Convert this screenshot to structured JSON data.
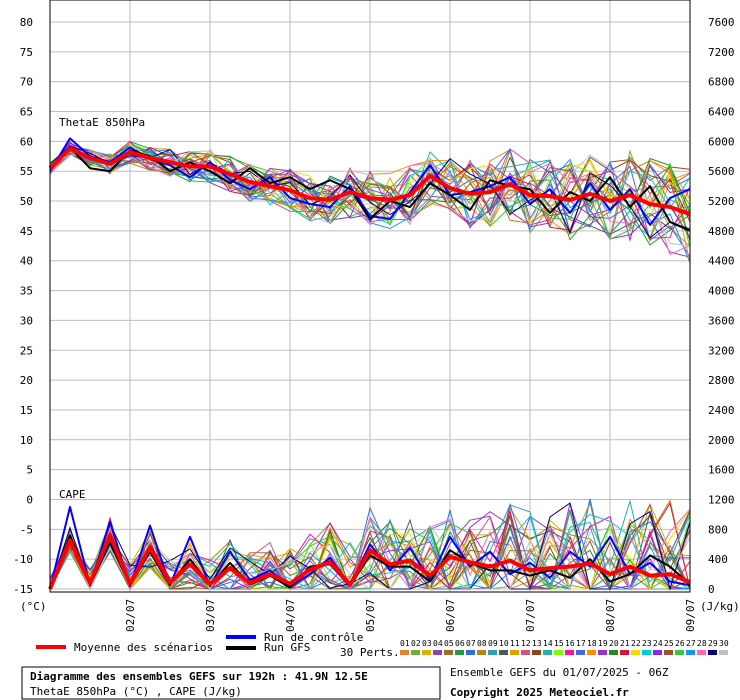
{
  "chart_data": {
    "type": "line",
    "left_axis": {
      "unit_label": "(°C)",
      "ticks": [
        80,
        75,
        70,
        65,
        60,
        55,
        50,
        45,
        40,
        35,
        30,
        25,
        20,
        15,
        10,
        5,
        0,
        -5,
        -10,
        -15
      ],
      "range": [
        -15,
        80
      ]
    },
    "right_axis": {
      "unit_label": "(J/kg)",
      "ticks": [
        7600,
        7200,
        6800,
        6400,
        6000,
        5600,
        5200,
        4800,
        4400,
        4000,
        3600,
        3200,
        2800,
        2400,
        2000,
        1600,
        1200,
        800,
        400,
        0
      ],
      "range": [
        0,
        7600
      ]
    },
    "x_labels": [
      "02/07",
      "03/07",
      "04/07",
      "05/07",
      "06/07",
      "07/07",
      "08/07",
      "09/07"
    ],
    "x_range_days": [
      0,
      8
    ],
    "grid": true,
    "panel_labels": {
      "thetae": "ThetaE 850hPa",
      "cape": "CAPE"
    },
    "thetae_mean": {
      "x": [
        0,
        0.25,
        0.5,
        0.75,
        1,
        1.25,
        1.5,
        1.75,
        2,
        2.25,
        2.5,
        2.75,
        3,
        3.25,
        3.5,
        3.75,
        4,
        4.25,
        4.5,
        4.75,
        5,
        5.25,
        5.5,
        5.75,
        6,
        6.25,
        6.5,
        6.75,
        7,
        7.25,
        7.5,
        7.75,
        8
      ],
      "y": [
        55.5,
        58.8,
        57.2,
        56.2,
        58.2,
        57.2,
        56.5,
        55.8,
        55.8,
        54.5,
        53.2,
        52.5,
        51.8,
        50.5,
        50.2,
        51.5,
        50.5,
        50.2,
        51.0,
        54.2,
        52.2,
        51.2,
        51.5,
        52.8,
        51.0,
        50.8,
        50.2,
        51.2,
        50.0,
        51.0,
        49.5,
        49.0,
        47.8
      ]
    },
    "cape_mean": {
      "x": [
        0,
        0.25,
        0.5,
        0.75,
        1,
        1.25,
        1.5,
        1.75,
        2,
        2.25,
        2.5,
        2.75,
        3,
        3.25,
        3.5,
        3.75,
        4,
        4.25,
        4.5,
        4.75,
        5,
        5.25,
        5.5,
        5.75,
        6,
        6.25,
        6.5,
        6.75,
        7,
        7.25,
        7.5,
        7.75,
        8
      ],
      "y": [
        0,
        650,
        80,
        720,
        70,
        560,
        90,
        330,
        70,
        280,
        80,
        200,
        70,
        260,
        360,
        60,
        520,
        330,
        380,
        180,
        430,
        360,
        300,
        380,
        250,
        280,
        300,
        340,
        200,
        300,
        180,
        200,
        90
      ]
    },
    "control_run": {
      "name": "Run de contrôle",
      "thetae_y": [
        55.0,
        60.5,
        57.5,
        56.5,
        59.0,
        57.0,
        56.0,
        54.0,
        56.5,
        53.5,
        52.0,
        54.0,
        50.5,
        49.5,
        49.0,
        52.5,
        47.5,
        47.0,
        51.5,
        56.0,
        51.0,
        51.5,
        52.5,
        54.0,
        49.5,
        52.0,
        48.0,
        53.0,
        48.5,
        52.0,
        46.0,
        50.5,
        52.0
      ],
      "cape_y": [
        0,
        1100,
        50,
        900,
        40,
        850,
        50,
        700,
        40,
        500,
        120,
        250,
        30,
        200,
        420,
        50,
        600,
        250,
        550,
        120,
        700,
        300,
        500,
        200,
        350,
        150,
        500,
        300,
        700,
        200,
        350,
        100,
        50
      ]
    },
    "gfs_run": {
      "name": "Run GFS",
      "thetae_y": [
        55.5,
        59.0,
        55.5,
        55.0,
        58.5,
        57.5,
        55.0,
        56.5,
        55.0,
        53.0,
        55.5,
        53.0,
        54.0,
        52.0,
        53.5,
        52.0,
        47.0,
        50.0,
        49.0,
        53.0,
        51.0,
        48.5,
        53.5,
        52.5,
        52.0,
        48.0,
        51.5,
        50.0,
        54.0,
        49.0,
        52.5,
        46.5,
        45.0
      ],
      "cape_y": [
        0,
        720,
        60,
        620,
        50,
        500,
        60,
        400,
        50,
        350,
        60,
        180,
        20,
        300,
        330,
        40,
        450,
        300,
        300,
        100,
        520,
        350,
        250,
        250,
        180,
        250,
        150,
        400,
        100,
        200,
        450,
        300,
        60
      ]
    },
    "legend": {
      "mean": "Moyenne des scénarios",
      "control": "Run de contrôle",
      "gfs": "Run GFS",
      "perts_label": "30 Perts.",
      "perts": [
        "01",
        "02",
        "03",
        "04",
        "05",
        "06",
        "07",
        "08",
        "09",
        "10",
        "11",
        "12",
        "13",
        "14",
        "15",
        "16",
        "17",
        "18",
        "19",
        "20",
        "21",
        "22",
        "23",
        "24",
        "25",
        "26",
        "27",
        "28",
        "29",
        "30"
      ],
      "pert_colors": [
        "#e8822a",
        "#6cae3e",
        "#d8b400",
        "#8e44ad",
        "#9b6b2f",
        "#1f9e3e",
        "#2f6fd6",
        "#b8860b",
        "#2aa0b8",
        "#555555",
        "#e0a000",
        "#d45090",
        "#8b4513",
        "#20b2aa",
        "#7cfc00",
        "#ff1493",
        "#4169e1",
        "#ff8c00",
        "#9932cc",
        "#228b22",
        "#dc143c",
        "#ffd700",
        "#00ced1",
        "#8a2be2",
        "#a0522d",
        "#32cd32",
        "#1e90ff",
        "#ff69b4",
        "#000080",
        "#c0c0c0"
      ]
    }
  },
  "footer": {
    "title": "Diagramme des ensembles GEFS sur 192h : 41.9N 12.5E",
    "subtitle": "ThetaE 850hPa (°C) , CAPE (J/kg)",
    "run_info": "Ensemble GEFS du 01/07/2025 - 06Z",
    "copyright": "Copyright 2025 Meteociel.fr"
  }
}
